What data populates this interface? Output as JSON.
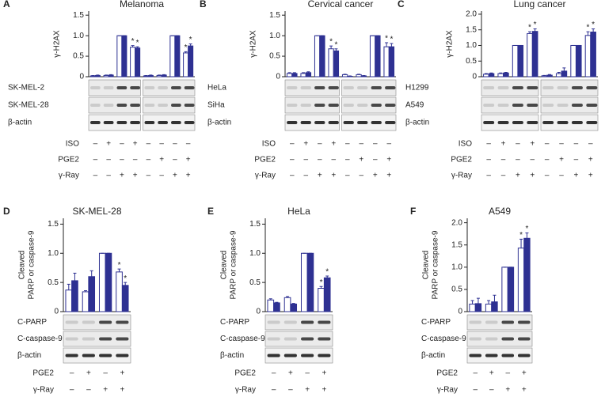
{
  "chart_data": [
    {
      "type": "bar",
      "panel": "A",
      "title": "Melanoma",
      "y_label": [
        "γ-H2AX"
      ],
      "ylim": [
        0,
        1.6
      ],
      "yticks": [
        0,
        0.5,
        {
          "value": 1,
          "label": "1.0"
        },
        1.5
      ],
      "series": [
        {
          "color": "#ffffff",
          "values": [
            0.02,
            0.03,
            1,
            0.72,
            0.02,
            0.03,
            1,
            0.58
          ],
          "errors": [
            0.01,
            0.01,
            0,
            0.04,
            0.01,
            0.01,
            0,
            0.03
          ],
          "annotations": [
            null,
            null,
            null,
            "*",
            null,
            null,
            null,
            "*"
          ]
        },
        {
          "color": "#2e3192",
          "values": [
            0.03,
            0.04,
            1,
            0.7,
            0.03,
            0.04,
            1,
            0.75
          ],
          "errors": [
            0.01,
            0.01,
            0,
            0.03,
            0.01,
            0.01,
            0,
            0.05
          ],
          "annotations": [
            null,
            null,
            null,
            "*",
            null,
            null,
            null,
            "*"
          ]
        }
      ],
      "blots": [
        "SK-MEL-2",
        "SK-MEL-28",
        "β-actin"
      ],
      "conditions": [
        {
          "name": "ISO",
          "signs": [
            "–",
            "+",
            "–",
            "+",
            "–",
            "–",
            "–",
            "–"
          ]
        },
        {
          "name": "PGE2",
          "signs": [
            "–",
            "–",
            "–",
            "–",
            "–",
            "+",
            "–",
            "+"
          ]
        },
        {
          "name": "γ-Ray",
          "signs": [
            "–",
            "–",
            "+",
            "+",
            "–",
            "–",
            "+",
            "+"
          ]
        }
      ]
    },
    {
      "type": "bar",
      "panel": "B",
      "title": "Cervical cancer",
      "y_label": [
        "γ-H2AX"
      ],
      "ylim": [
        0,
        1.6
      ],
      "yticks": [
        0,
        0.5,
        {
          "value": 1,
          "label": "1.0"
        },
        1.5
      ],
      "series": [
        {
          "color": "#ffffff",
          "values": [
            0.08,
            0.08,
            1,
            0.68,
            0.05,
            0.05,
            1,
            0.73
          ],
          "errors": [
            0.02,
            0.02,
            0,
            0.07,
            0.01,
            0.01,
            0,
            0.1
          ],
          "annotations": [
            null,
            null,
            null,
            "*",
            null,
            null,
            null,
            "*"
          ]
        },
        {
          "color": "#2e3192",
          "values": [
            0.08,
            0.1,
            1,
            0.63,
            0.01,
            0.02,
            1,
            0.73
          ],
          "errors": [
            0.02,
            0.02,
            0,
            0.05,
            0.01,
            0.01,
            0,
            0.08
          ],
          "annotations": [
            null,
            null,
            null,
            "*",
            null,
            null,
            null,
            "*"
          ]
        }
      ],
      "blots": [
        "HeLa",
        "SiHa",
        "β-actin"
      ],
      "conditions": [
        {
          "name": "ISO",
          "signs": [
            "–",
            "+",
            "–",
            "+",
            "–",
            "–",
            "–",
            "–"
          ]
        },
        {
          "name": "PGE2",
          "signs": [
            "–",
            "–",
            "–",
            "–",
            "–",
            "+",
            "–",
            "+"
          ]
        },
        {
          "name": "γ-Ray",
          "signs": [
            "–",
            "–",
            "+",
            "+",
            "–",
            "–",
            "+",
            "+"
          ]
        }
      ]
    },
    {
      "type": "bar",
      "panel": "C",
      "title": "Lung cancer",
      "y_label": [
        "γ-H2AX"
      ],
      "ylim": [
        0,
        2.1
      ],
      "yticks": [
        0,
        0.5,
        {
          "value": 1,
          "label": "1.0"
        },
        1.5,
        {
          "value": 2,
          "label": "2.0"
        }
      ],
      "series": [
        {
          "color": "#ffffff",
          "values": [
            0.08,
            0.1,
            1,
            1.38,
            0.03,
            0.1,
            1,
            1.32
          ],
          "errors": [
            0.02,
            0.02,
            0,
            0.06,
            0.01,
            0.04,
            0,
            0.12
          ],
          "annotations": [
            null,
            null,
            null,
            "*",
            null,
            null,
            null,
            "*"
          ]
        },
        {
          "color": "#2e3192",
          "values": [
            0.1,
            0.12,
            1,
            1.45,
            0.05,
            0.18,
            1,
            1.43
          ],
          "errors": [
            0.02,
            0.02,
            0,
            0.08,
            0.02,
            0.1,
            0,
            0.1
          ],
          "annotations": [
            null,
            null,
            null,
            "*",
            null,
            null,
            null,
            "*"
          ]
        }
      ],
      "blots": [
        "H1299",
        "A549",
        "β-actin"
      ],
      "conditions": [
        {
          "name": "ISO",
          "signs": [
            "–",
            "+",
            "–",
            "+",
            "–",
            "–",
            "–",
            "–"
          ]
        },
        {
          "name": "PGE2",
          "signs": [
            "–",
            "–",
            "–",
            "–",
            "–",
            "+",
            "–",
            "+"
          ]
        },
        {
          "name": "γ-Ray",
          "signs": [
            "–",
            "–",
            "+",
            "+",
            "–",
            "–",
            "+",
            "+"
          ]
        }
      ]
    },
    {
      "type": "bar",
      "panel": "D",
      "title": "SK-MEL-28",
      "y_label": [
        "Cleaved",
        "PARP or caspase-9"
      ],
      "ylim": [
        0,
        1.6
      ],
      "yticks": [
        0,
        0.5,
        {
          "value": 1,
          "label": "1.0"
        },
        1.5
      ],
      "series": [
        {
          "color": "#ffffff",
          "values": [
            0.37,
            0.34,
            1,
            0.68
          ],
          "errors": [
            0.1,
            0.02,
            0,
            0.05
          ],
          "annotations": [
            null,
            null,
            null,
            "*"
          ]
        },
        {
          "color": "#2e3192",
          "values": [
            0.53,
            0.6,
            1,
            0.45
          ],
          "errors": [
            0.13,
            0.1,
            0,
            0.05
          ],
          "annotations": [
            null,
            null,
            null,
            "*"
          ]
        }
      ],
      "blots": [
        "C-PARP",
        "C-caspase-9",
        "β-actin"
      ],
      "conditions": [
        {
          "name": "PGE2",
          "signs": [
            "–",
            "+",
            "–",
            "+"
          ]
        },
        {
          "name": "γ-Ray",
          "signs": [
            "–",
            "–",
            "+",
            "+"
          ]
        }
      ]
    },
    {
      "type": "bar",
      "panel": "E",
      "title": "HeLa",
      "y_label": [
        "Cleaved",
        "PARP or caspase-9"
      ],
      "ylim": [
        0,
        1.6
      ],
      "yticks": [
        0,
        0.5,
        {
          "value": 1,
          "label": "1.0"
        },
        1.5
      ],
      "series": [
        {
          "color": "#ffffff",
          "values": [
            0.2,
            0.24,
            1,
            0.4
          ],
          "errors": [
            0.02,
            0.02,
            0,
            0.03
          ],
          "annotations": [
            null,
            null,
            null,
            "*"
          ]
        },
        {
          "color": "#2e3192",
          "values": [
            0.15,
            0.13,
            1,
            0.58
          ],
          "errors": [
            0.01,
            0.01,
            0,
            0.03
          ],
          "annotations": [
            null,
            null,
            null,
            "*"
          ]
        }
      ],
      "blots": [
        "C-PARP",
        "C-caspase-9",
        "β-actin"
      ],
      "conditions": [
        {
          "name": "PGE2",
          "signs": [
            "–",
            "+",
            "–",
            "+"
          ]
        },
        {
          "name": "γ-Ray",
          "signs": [
            "–",
            "–",
            "+",
            "+"
          ]
        }
      ]
    },
    {
      "type": "bar",
      "panel": "F",
      "title": "A549",
      "y_label": [
        "Cleaved",
        "PARP or caspase-9"
      ],
      "ylim": [
        0,
        2.1
      ],
      "yticks": [
        0,
        0.5,
        {
          "value": 1,
          "label": "1.0"
        },
        1.5,
        {
          "value": 2,
          "label": "2.0"
        }
      ],
      "series": [
        {
          "color": "#ffffff",
          "values": [
            0.17,
            0.17,
            1,
            1.43
          ],
          "errors": [
            0.08,
            0.08,
            0,
            0.2
          ],
          "annotations": [
            null,
            null,
            null,
            "*"
          ]
        },
        {
          "color": "#2e3192",
          "values": [
            0.18,
            0.22,
            1,
            1.65
          ],
          "errors": [
            0.12,
            0.15,
            0,
            0.12
          ],
          "annotations": [
            null,
            null,
            null,
            "*"
          ]
        }
      ],
      "blots": [
        "C-PARP",
        "C-caspase-9",
        "β-actin"
      ],
      "conditions": [
        {
          "name": "PGE2",
          "signs": [
            "–",
            "+",
            "–",
            "+"
          ]
        },
        {
          "name": "γ-Ray",
          "signs": [
            "–",
            "–",
            "+",
            "+"
          ]
        }
      ]
    }
  ]
}
